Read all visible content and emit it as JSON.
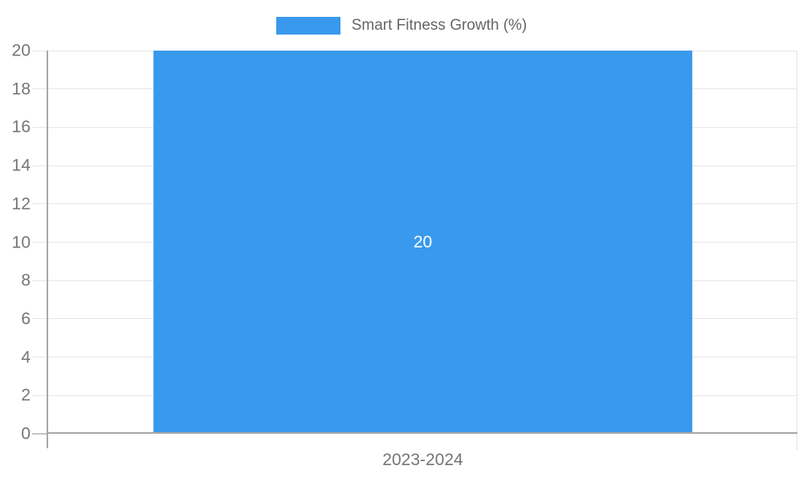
{
  "chart_data": {
    "type": "bar",
    "title": "",
    "categories": [
      "2023-2024"
    ],
    "series": [
      {
        "name": "Smart Fitness Growth (%)",
        "values": [
          20
        ]
      }
    ],
    "bar_labels": [
      "20"
    ],
    "ylim": [
      0,
      20
    ],
    "yticks": [
      0,
      2,
      4,
      6,
      8,
      10,
      12,
      14,
      16,
      18,
      20
    ],
    "grid": true,
    "legend_position": "top",
    "bar_percentage": 0.72,
    "colors": {
      "bar_fill": "#3999ec",
      "bar_label_text": "#ffffff",
      "gridline": "#e6e6e6",
      "axis_line": "#a8a8a8",
      "zero_tick": "#c4c4c4",
      "right_border": "#e2e2e2",
      "tick_text": "#757575",
      "legend_text": "#666666"
    }
  }
}
